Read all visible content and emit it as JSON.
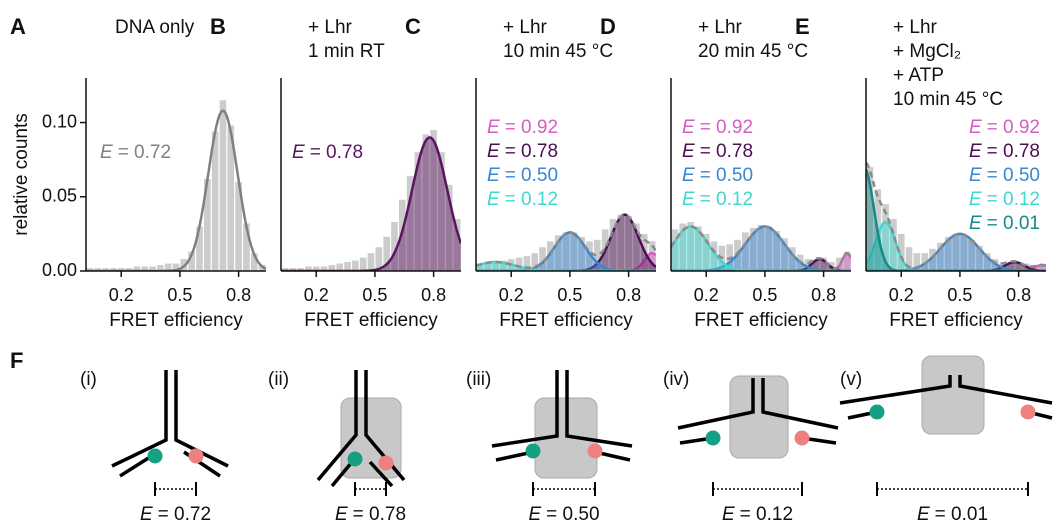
{
  "chart_data": [
    {
      "type": "histogram",
      "panel": "A",
      "conditions": [
        "DNA only"
      ],
      "xlabel": "FRET efficiency",
      "ylabel": "relative counts",
      "bins": [
        0.02,
        0.06,
        0.1,
        0.14,
        0.18,
        0.22,
        0.26,
        0.3,
        0.34,
        0.38,
        0.42,
        0.46,
        0.5,
        0.54,
        0.58,
        0.62,
        0.66,
        0.7,
        0.74,
        0.78,
        0.82,
        0.86,
        0.9,
        0.94
      ],
      "counts": [
        0.002,
        0.002,
        0.002,
        0.002,
        0.002,
        0.002,
        0.003,
        0.003,
        0.003,
        0.004,
        0.005,
        0.005,
        0.008,
        0.013,
        0.03,
        0.062,
        0.094,
        0.115,
        0.098,
        0.06,
        0.032,
        0.012,
        0.004
      ],
      "color": "#cccccc",
      "xlim": [
        0.02,
        0.94
      ],
      "xticks": [
        0.2,
        0.5,
        0.8
      ],
      "ylim": [
        0,
        0.13
      ],
      "yticks": [
        {
          "value": 0,
          "label": "0.00"
        },
        {
          "value": 0.05,
          "label": "0.05"
        },
        {
          "value": 0.1,
          "label": "0.10"
        }
      ],
      "show_sum": false,
      "fits": [
        {
          "symbol": "E",
          "label": "= 0.72",
          "mean": 0.72,
          "sd": 0.075,
          "amplitude": 0.108,
          "color": "#808080",
          "filled": false
        }
      ]
    },
    {
      "type": "histogram",
      "panel": "B",
      "conditions": [
        "+ Lhr",
        "1 min RT"
      ],
      "xlabel": "FRET efficiency",
      "bins": [
        0.02,
        0.06,
        0.1,
        0.14,
        0.18,
        0.22,
        0.26,
        0.3,
        0.34,
        0.38,
        0.42,
        0.46,
        0.5,
        0.54,
        0.58,
        0.62,
        0.66,
        0.7,
        0.74,
        0.78,
        0.82,
        0.86,
        0.9,
        0.94
      ],
      "counts": [
        0.002,
        0.002,
        0.002,
        0.003,
        0.003,
        0.003,
        0.004,
        0.005,
        0.006,
        0.007,
        0.009,
        0.012,
        0.016,
        0.023,
        0.033,
        0.048,
        0.064,
        0.08,
        0.092,
        0.095,
        0.08,
        0.058,
        0.035
      ],
      "color": "#cccccc",
      "xlim": [
        0.02,
        0.94
      ],
      "xticks": [
        0.2,
        0.5,
        0.8
      ],
      "ylim": [
        0,
        0.13
      ],
      "show_sum": false,
      "fits": [
        {
          "symbol": "E",
          "label": "= 0.78",
          "mean": 0.78,
          "sd": 0.09,
          "amplitude": 0.09,
          "color": "#5a1560",
          "filled": true
        }
      ]
    },
    {
      "type": "histogram",
      "panel": "C",
      "conditions": [
        "+ Lhr",
        "10 min 45 °C"
      ],
      "xlabel": "FRET efficiency",
      "bins": [
        0.02,
        0.06,
        0.1,
        0.14,
        0.18,
        0.22,
        0.26,
        0.3,
        0.34,
        0.38,
        0.42,
        0.46,
        0.5,
        0.54,
        0.58,
        0.62,
        0.66,
        0.7,
        0.74,
        0.78,
        0.82,
        0.86,
        0.9,
        0.94
      ],
      "counts": [
        0.005,
        0.006,
        0.007,
        0.007,
        0.008,
        0.009,
        0.01,
        0.012,
        0.016,
        0.02,
        0.024,
        0.026,
        0.026,
        0.023,
        0.02,
        0.021,
        0.028,
        0.035,
        0.038,
        0.037,
        0.032,
        0.025,
        0.02
      ],
      "color": "#cccccc",
      "xlim": [
        0.02,
        0.94
      ],
      "xticks": [
        0.2,
        0.5,
        0.8
      ],
      "ylim": [
        0,
        0.13
      ],
      "show_sum": true,
      "fits": [
        {
          "symbol": "E",
          "label": "= 0.92",
          "mean": 0.92,
          "sd": 0.04,
          "amplitude": 0.012,
          "color": "#d35fc2",
          "filled": true
        },
        {
          "symbol": "E",
          "label": "= 0.78",
          "mean": 0.78,
          "sd": 0.07,
          "amplitude": 0.038,
          "color": "#4b1052",
          "filled": true
        },
        {
          "symbol": "E",
          "label": "= 0.50",
          "mean": 0.5,
          "sd": 0.08,
          "amplitude": 0.026,
          "color": "#3a86d0",
          "filled": true
        },
        {
          "symbol": "E",
          "label": "= 0.12",
          "mean": 0.12,
          "sd": 0.1,
          "amplitude": 0.006,
          "color": "#3fd8d0",
          "filled": true
        }
      ]
    },
    {
      "type": "histogram",
      "panel": "D",
      "conditions": [
        "+ Lhr",
        "20 min 45 °C"
      ],
      "xlabel": "FRET efficiency",
      "bins": [
        0.02,
        0.06,
        0.1,
        0.14,
        0.18,
        0.22,
        0.26,
        0.3,
        0.34,
        0.38,
        0.42,
        0.46,
        0.5,
        0.54,
        0.58,
        0.62,
        0.66,
        0.7,
        0.74,
        0.78,
        0.82,
        0.86,
        0.9,
        0.94
      ],
      "counts": [
        0.028,
        0.032,
        0.033,
        0.03,
        0.025,
        0.02,
        0.017,
        0.018,
        0.021,
        0.026,
        0.029,
        0.031,
        0.03,
        0.027,
        0.022,
        0.016,
        0.011,
        0.008,
        0.008,
        0.009,
        0.006,
        0.009,
        0.013
      ],
      "color": "#cccccc",
      "xlim": [
        0.02,
        0.94
      ],
      "xticks": [
        0.2,
        0.5,
        0.8
      ],
      "ylim": [
        0,
        0.13
      ],
      "show_sum": true,
      "fits": [
        {
          "symbol": "E",
          "label": "= 0.92",
          "mean": 0.92,
          "sd": 0.025,
          "amplitude": 0.012,
          "color": "#d35fc2",
          "filled": true
        },
        {
          "symbol": "E",
          "label": "= 0.78",
          "mean": 0.78,
          "sd": 0.04,
          "amplitude": 0.008,
          "color": "#4b1052",
          "filled": true
        },
        {
          "symbol": "E",
          "label": "= 0.50",
          "mean": 0.5,
          "sd": 0.1,
          "amplitude": 0.03,
          "color": "#3a86d0",
          "filled": true
        },
        {
          "symbol": "E",
          "label": "= 0.12",
          "mean": 0.12,
          "sd": 0.09,
          "amplitude": 0.03,
          "color": "#3fd8d0",
          "filled": true
        }
      ]
    },
    {
      "type": "histogram",
      "panel": "E",
      "conditions": [
        "+ Lhr",
        "+ MgCl₂",
        "+ ATP",
        "10 min 45 °C"
      ],
      "xlabel": "FRET efficiency",
      "bins": [
        0.02,
        0.06,
        0.1,
        0.14,
        0.18,
        0.22,
        0.26,
        0.3,
        0.34,
        0.38,
        0.42,
        0.46,
        0.5,
        0.54,
        0.58,
        0.62,
        0.66,
        0.7,
        0.74,
        0.78,
        0.82,
        0.86,
        0.9,
        0.94
      ],
      "counts": [
        0.07,
        0.055,
        0.045,
        0.035,
        0.025,
        0.016,
        0.012,
        0.012,
        0.015,
        0.019,
        0.023,
        0.025,
        0.024,
        0.021,
        0.017,
        0.012,
        0.008,
        0.006,
        0.006,
        0.006,
        0.005,
        0.004,
        0.004
      ],
      "color": "#cccccc",
      "xlim": [
        0.02,
        0.94
      ],
      "xticks": [
        0.2,
        0.5,
        0.8
      ],
      "ylim": [
        0,
        0.13
      ],
      "show_sum": true,
      "fits": [
        {
          "symbol": "E",
          "label": "= 0.92",
          "mean": 0.92,
          "sd": 0.04,
          "amplitude": 0.004,
          "color": "#d35fc2",
          "filled": true
        },
        {
          "symbol": "E",
          "label": "= 0.78",
          "mean": 0.78,
          "sd": 0.05,
          "amplitude": 0.006,
          "color": "#4b1052",
          "filled": true
        },
        {
          "symbol": "E",
          "label": "= 0.50",
          "mean": 0.5,
          "sd": 0.1,
          "amplitude": 0.025,
          "color": "#3a86d0",
          "filled": true
        },
        {
          "symbol": "E",
          "label": "= 0.12",
          "mean": 0.12,
          "sd": 0.05,
          "amplitude": 0.033,
          "color": "#3fd8d0",
          "filled": true
        },
        {
          "symbol": "E",
          "label": "= 0.01",
          "mean": 0.01,
          "sd": 0.05,
          "amplitude": 0.07,
          "color": "#168a88",
          "filled": true
        }
      ]
    }
  ],
  "diagram": {
    "panel": "F",
    "items": [
      {
        "roman": "(i)",
        "symbol": "E",
        "label": "= 0.72"
      },
      {
        "roman": "(ii)",
        "symbol": "E",
        "label": "= 0.78"
      },
      {
        "roman": "(iii)",
        "symbol": "E",
        "label": "= 0.50"
      },
      {
        "roman": "(iv)",
        "symbol": "E",
        "label": "= 0.12"
      },
      {
        "roman": "(v)",
        "symbol": "E",
        "label": "= 0.01"
      }
    ]
  }
}
